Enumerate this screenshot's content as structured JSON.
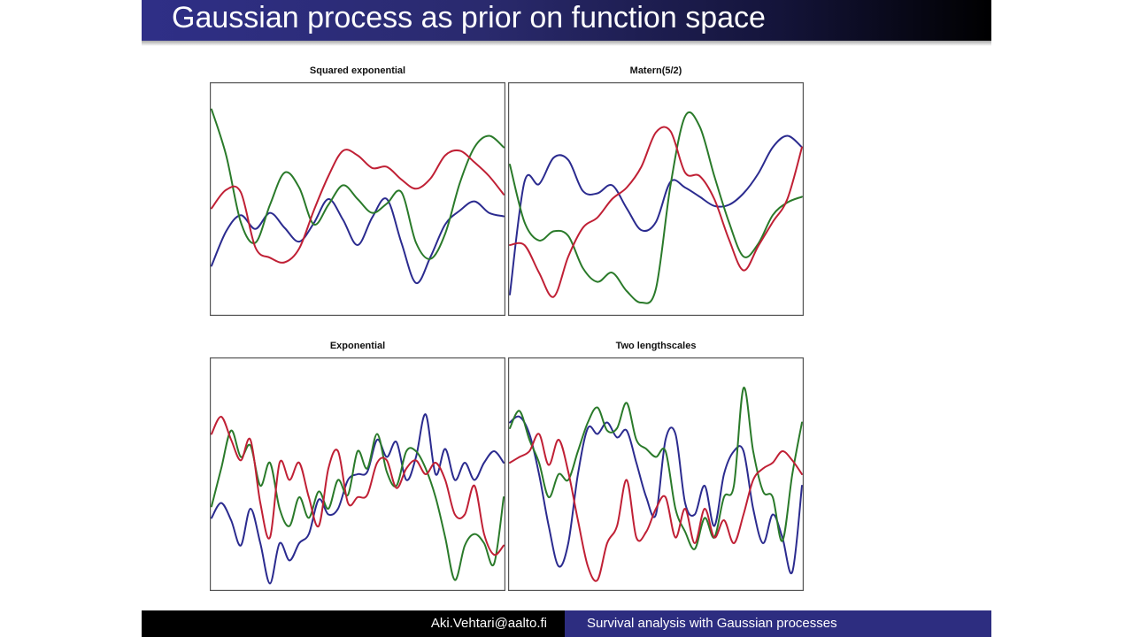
{
  "slide": {
    "title": "Gaussian process as prior on function space",
    "footer_left": "Aki.Vehtari@aalto.fi",
    "footer_right": "Survival analysis with Gaussian processes"
  },
  "colors": {
    "series1": "#2b2b8f",
    "series2": "#2a7a2a",
    "series3": "#c02035",
    "title_bar": "#2f2f87",
    "footer_right_bg": "#2d2d80"
  },
  "chart_data": [
    {
      "type": "line",
      "title": "Squared exponential",
      "xlim": [
        0,
        1
      ],
      "ylim": [
        -1,
        1
      ],
      "grid": false,
      "series": [
        {
          "color": "#2b2b8f",
          "x": [
            0,
            0.05,
            0.1,
            0.15,
            0.2,
            0.25,
            0.3,
            0.35,
            0.4,
            0.45,
            0.5,
            0.55,
            0.6,
            0.65,
            0.7,
            0.75,
            0.8,
            0.85,
            0.9,
            0.95,
            1
          ],
          "y": [
            -0.58,
            -0.28,
            -0.14,
            -0.26,
            -0.12,
            -0.25,
            -0.37,
            -0.21,
            0.0,
            -0.18,
            -0.4,
            -0.16,
            0.0,
            -0.38,
            -0.73,
            -0.5,
            -0.22,
            -0.1,
            -0.02,
            -0.12,
            -0.15
          ]
        },
        {
          "color": "#2a7a2a",
          "x": [
            0,
            0.05,
            0.1,
            0.15,
            0.2,
            0.25,
            0.3,
            0.35,
            0.4,
            0.45,
            0.5,
            0.55,
            0.6,
            0.65,
            0.7,
            0.75,
            0.8,
            0.85,
            0.9,
            0.95,
            1
          ],
          "y": [
            0.78,
            0.38,
            -0.2,
            -0.38,
            -0.05,
            0.23,
            0.1,
            -0.22,
            -0.05,
            0.12,
            0.0,
            -0.12,
            -0.04,
            0.06,
            -0.38,
            -0.52,
            -0.3,
            0.14,
            0.45,
            0.55,
            0.45
          ]
        },
        {
          "color": "#c02035",
          "x": [
            0,
            0.05,
            0.1,
            0.15,
            0.2,
            0.25,
            0.3,
            0.35,
            0.4,
            0.45,
            0.5,
            0.55,
            0.6,
            0.65,
            0.7,
            0.75,
            0.8,
            0.85,
            0.9,
            0.95,
            1
          ],
          "y": [
            -0.08,
            0.08,
            0.06,
            -0.42,
            -0.51,
            -0.55,
            -0.43,
            -0.1,
            0.2,
            0.42,
            0.38,
            0.27,
            0.28,
            0.17,
            0.09,
            0.18,
            0.38,
            0.42,
            0.32,
            0.2,
            0.04
          ]
        }
      ]
    },
    {
      "type": "line",
      "title": "Matern(5/2)",
      "xlim": [
        0,
        1
      ],
      "ylim": [
        -1,
        1
      ],
      "grid": false,
      "series": [
        {
          "color": "#2b2b8f",
          "x": [
            0,
            0.05,
            0.1,
            0.15,
            0.2,
            0.25,
            0.3,
            0.35,
            0.4,
            0.45,
            0.5,
            0.55,
            0.6,
            0.65,
            0.7,
            0.75,
            0.8,
            0.85,
            0.9,
            0.95,
            1
          ],
          "y": [
            -0.83,
            0.15,
            0.13,
            0.36,
            0.34,
            0.07,
            0.05,
            0.12,
            -0.08,
            -0.27,
            -0.2,
            0.15,
            0.1,
            0.02,
            -0.06,
            -0.05,
            0.05,
            0.22,
            0.45,
            0.55,
            0.45
          ]
        },
        {
          "color": "#2a7a2a",
          "x": [
            0,
            0.05,
            0.1,
            0.15,
            0.2,
            0.25,
            0.3,
            0.35,
            0.4,
            0.45,
            0.5,
            0.55,
            0.6,
            0.65,
            0.7,
            0.75,
            0.8,
            0.85,
            0.9,
            0.95,
            1
          ],
          "y": [
            0.3,
            -0.2,
            -0.36,
            -0.28,
            -0.32,
            -0.6,
            -0.72,
            -0.64,
            -0.8,
            -0.9,
            -0.78,
            0.12,
            0.72,
            0.63,
            0.2,
            -0.2,
            -0.5,
            -0.39,
            -0.14,
            -0.03,
            0.02
          ]
        },
        {
          "color": "#c02035",
          "x": [
            0,
            0.05,
            0.1,
            0.15,
            0.2,
            0.25,
            0.3,
            0.35,
            0.4,
            0.45,
            0.5,
            0.55,
            0.6,
            0.65,
            0.7,
            0.75,
            0.8,
            0.85,
            0.9,
            0.95,
            1
          ],
          "y": [
            -0.4,
            -0.4,
            -0.64,
            -0.85,
            -0.5,
            -0.25,
            -0.16,
            0.0,
            0.1,
            0.28,
            0.58,
            0.59,
            0.23,
            0.2,
            0.0,
            -0.35,
            -0.62,
            -0.41,
            -0.2,
            0.0,
            0.45
          ]
        }
      ]
    },
    {
      "type": "line",
      "title": "Exponential",
      "xlim": [
        0,
        1
      ],
      "ylim": [
        -1,
        1
      ],
      "grid": false,
      "series": [
        {
          "color": "#2b2b8f",
          "x": [
            0,
            0.033,
            0.067,
            0.1,
            0.133,
            0.167,
            0.2,
            0.233,
            0.267,
            0.3,
            0.333,
            0.367,
            0.4,
            0.433,
            0.467,
            0.5,
            0.533,
            0.567,
            0.6,
            0.633,
            0.667,
            0.7,
            0.733,
            0.767,
            0.8,
            0.833,
            0.867,
            0.9,
            0.933,
            0.967,
            1
          ],
          "y": [
            -0.38,
            -0.25,
            -0.4,
            -0.62,
            -0.3,
            -0.6,
            -0.95,
            -0.6,
            -0.75,
            -0.6,
            -0.52,
            -0.22,
            -0.35,
            -0.3,
            -0.05,
            0.0,
            0.02,
            0.3,
            0.15,
            0.28,
            -0.05,
            0.15,
            0.52,
            0.0,
            0.22,
            -0.05,
            0.1,
            -0.05,
            0.1,
            0.2,
            0.1
          ]
        },
        {
          "color": "#2a7a2a",
          "x": [
            0,
            0.033,
            0.067,
            0.1,
            0.133,
            0.167,
            0.2,
            0.233,
            0.267,
            0.3,
            0.333,
            0.367,
            0.4,
            0.433,
            0.467,
            0.5,
            0.533,
            0.567,
            0.6,
            0.633,
            0.667,
            0.7,
            0.733,
            0.767,
            0.8,
            0.833,
            0.867,
            0.9,
            0.933,
            0.967,
            1
          ],
          "y": [
            -0.28,
            0.05,
            0.38,
            0.15,
            0.25,
            -0.1,
            0.1,
            -0.3,
            -0.45,
            -0.2,
            -0.38,
            -0.15,
            -0.3,
            -0.05,
            -0.18,
            0.2,
            0.05,
            0.35,
            0.02,
            -0.1,
            0.2,
            0.2,
            0.05,
            -0.2,
            -0.55,
            -0.92,
            -0.62,
            -0.52,
            -0.6,
            -0.78,
            -0.2
          ]
        },
        {
          "color": "#c02035",
          "x": [
            0,
            0.033,
            0.067,
            0.1,
            0.133,
            0.167,
            0.2,
            0.233,
            0.267,
            0.3,
            0.333,
            0.367,
            0.4,
            0.433,
            0.467,
            0.5,
            0.533,
            0.567,
            0.6,
            0.633,
            0.667,
            0.7,
            0.733,
            0.767,
            0.8,
            0.833,
            0.867,
            0.9,
            0.933,
            0.967,
            1
          ],
          "y": [
            0.35,
            0.5,
            0.3,
            0.12,
            0.3,
            -0.25,
            -0.55,
            0.1,
            -0.05,
            0.1,
            -0.2,
            -0.45,
            0.05,
            0.2,
            -0.25,
            -0.2,
            -0.18,
            0.1,
            0.12,
            -0.12,
            0.05,
            0.12,
            0.0,
            0.1,
            -0.05,
            -0.35,
            -0.35,
            -0.1,
            -0.52,
            -0.7,
            -0.62
          ]
        }
      ]
    },
    {
      "type": "line",
      "title": "Two lengthscales",
      "xlim": [
        0,
        1
      ],
      "ylim": [
        -1,
        1
      ],
      "grid": false,
      "series": [
        {
          "color": "#2b2b8f",
          "x": [
            0,
            0.033,
            0.067,
            0.1,
            0.133,
            0.167,
            0.2,
            0.233,
            0.267,
            0.3,
            0.333,
            0.367,
            0.4,
            0.433,
            0.467,
            0.5,
            0.533,
            0.567,
            0.6,
            0.633,
            0.667,
            0.7,
            0.733,
            0.767,
            0.8,
            0.833,
            0.867,
            0.9,
            0.933,
            0.967,
            1
          ],
          "y": [
            0.45,
            0.5,
            0.35,
            0.0,
            -0.45,
            -0.8,
            -0.6,
            0.0,
            0.4,
            0.35,
            0.45,
            0.32,
            0.38,
            0.1,
            -0.2,
            -0.35,
            0.3,
            0.35,
            -0.25,
            -0.35,
            -0.1,
            -0.45,
            0.0,
            0.2,
            0.2,
            -0.3,
            -0.6,
            -0.35,
            -0.55,
            -0.85,
            -0.1
          ]
        },
        {
          "color": "#2a7a2a",
          "x": [
            0,
            0.033,
            0.067,
            0.1,
            0.133,
            0.167,
            0.2,
            0.233,
            0.267,
            0.3,
            0.333,
            0.367,
            0.4,
            0.433,
            0.467,
            0.5,
            0.533,
            0.567,
            0.6,
            0.633,
            0.667,
            0.7,
            0.733,
            0.767,
            0.8,
            0.833,
            0.867,
            0.9,
            0.933,
            0.967,
            1
          ],
          "y": [
            0.4,
            0.55,
            0.3,
            0.1,
            -0.2,
            0.0,
            -0.05,
            0.2,
            0.45,
            0.58,
            0.38,
            0.4,
            0.62,
            0.3,
            0.22,
            0.15,
            0.2,
            -0.3,
            -0.5,
            -0.65,
            -0.38,
            -0.55,
            -0.2,
            -0.1,
            0.75,
            0.2,
            -0.15,
            -0.2,
            -0.58,
            0.0,
            0.45
          ]
        },
        {
          "color": "#c02035",
          "x": [
            0,
            0.033,
            0.067,
            0.1,
            0.133,
            0.167,
            0.2,
            0.233,
            0.267,
            0.3,
            0.333,
            0.367,
            0.4,
            0.433,
            0.467,
            0.5,
            0.533,
            0.567,
            0.6,
            0.633,
            0.667,
            0.7,
            0.733,
            0.767,
            0.8,
            0.833,
            0.867,
            0.9,
            0.933,
            0.967,
            1
          ],
          "y": [
            0.1,
            0.15,
            0.2,
            0.35,
            0.08,
            0.3,
            0.02,
            -0.4,
            -0.8,
            -0.92,
            -0.6,
            -0.45,
            -0.05,
            -0.55,
            -0.5,
            -0.3,
            -0.2,
            -0.55,
            -0.3,
            -0.6,
            -0.3,
            -0.55,
            -0.4,
            -0.6,
            -0.35,
            -0.05,
            0.05,
            0.1,
            0.2,
            0.12,
            0.0
          ]
        }
      ]
    }
  ]
}
